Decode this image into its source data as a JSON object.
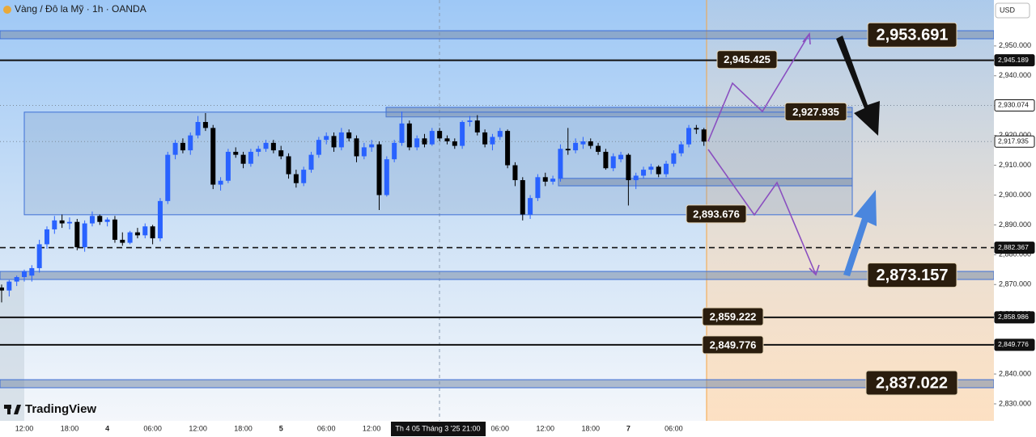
{
  "chart_data": {
    "type": "candlestick",
    "title": "Vàng / Đô la Mỹ · 1h · OANDA",
    "currency": "USD",
    "brand": "TradingView",
    "crosshair_label": "Th 4 05 Tháng 3 '25  21:00",
    "up_color": "#2962ff",
    "down_color": "#000000",
    "categories": [
      null,
      null,
      null,
      "12:00",
      null,
      null,
      null,
      null,
      null,
      "18:00",
      null,
      null,
      null,
      null,
      "4",
      null,
      null,
      null,
      null,
      null,
      "06:00",
      null,
      null,
      null,
      null,
      null,
      "12:00",
      null,
      null,
      null,
      null,
      null,
      "18:00",
      null,
      null,
      null,
      null,
      "5",
      null,
      null,
      null,
      null,
      null,
      "06:00",
      null,
      null,
      null,
      null,
      null,
      "12:00",
      null,
      null,
      null,
      null,
      null,
      null,
      null,
      null,
      null,
      null,
      null,
      null,
      null,
      null,
      null,
      null,
      "06:00",
      null,
      null,
      null,
      null,
      null,
      "12:00",
      null,
      null,
      null,
      null,
      null,
      "18:00",
      null,
      null,
      null,
      null,
      "7",
      null,
      null,
      null,
      null,
      null,
      "06:00",
      null,
      null,
      null,
      null
    ],
    "ohlc": [
      [
        2869,
        2870,
        2864,
        2868
      ],
      [
        2868,
        2871.5,
        2866,
        2871
      ],
      [
        2871,
        2873,
        2869.5,
        2872.5
      ],
      [
        2872.5,
        2875,
        2871,
        2874.5
      ],
      [
        2873,
        2876.5,
        2871,
        2875.5
      ],
      [
        2875.5,
        2885,
        2874,
        2883.5
      ],
      [
        2883.5,
        2889.5,
        2882,
        2888.5
      ],
      [
        2888.5,
        2893,
        2887,
        2891.5
      ],
      [
        2891.5,
        2893.5,
        2889,
        2890.5
      ],
      [
        2890.5,
        2892.5,
        2888.5,
        2891
      ],
      [
        2891,
        2892,
        2881.5,
        2882.5
      ],
      [
        2882.5,
        2891.5,
        2881,
        2890.5
      ],
      [
        2890.5,
        2894.5,
        2889.5,
        2893
      ],
      [
        2893,
        2893.5,
        2890,
        2891
      ],
      [
        2891,
        2892.5,
        2889.5,
        2891.8
      ],
      [
        2891.8,
        2893,
        2884,
        2885
      ],
      [
        2885,
        2887.5,
        2883,
        2884
      ],
      [
        2884,
        2888,
        2883.5,
        2887.5
      ],
      [
        2887.5,
        2889,
        2885.5,
        2886.5
      ],
      [
        2886.5,
        2890.5,
        2885.5,
        2889.5
      ],
      [
        2889.5,
        2890,
        2883.5,
        2885.5
      ],
      [
        2885.5,
        2899,
        2884.5,
        2898
      ],
      [
        2898,
        2914.5,
        2897,
        2913.5
      ],
      [
        2913.5,
        2918.5,
        2912,
        2917.5
      ],
      [
        2917.5,
        2919,
        2914,
        2915
      ],
      [
        2915,
        2921,
        2913.5,
        2920
      ],
      [
        2920,
        2926.5,
        2919,
        2924.5
      ],
      [
        2924.5,
        2927.5,
        2921.5,
        2922.5
      ],
      [
        2922.5,
        2923.5,
        2902,
        2903.5
      ],
      [
        2903.5,
        2906,
        2901.5,
        2904.8
      ],
      [
        2904.8,
        2915.5,
        2904,
        2914.5
      ],
      [
        2914.5,
        2916,
        2912.5,
        2913.5
      ],
      [
        2913.5,
        2914.5,
        2909,
        2910.5
      ],
      [
        2910.5,
        2915.5,
        2909.5,
        2914.5
      ],
      [
        2914.5,
        2916.5,
        2913,
        2915.5
      ],
      [
        2915.5,
        2918.5,
        2914.5,
        2917.5
      ],
      [
        2917.5,
        2918.5,
        2914,
        2915
      ],
      [
        2915,
        2916.5,
        2912,
        2913
      ],
      [
        2913,
        2914,
        2905.5,
        2907
      ],
      [
        2907,
        2908.5,
        2902.5,
        2904
      ],
      [
        2904,
        2909.5,
        2903,
        2908.5
      ],
      [
        2908.5,
        2914.5,
        2907.5,
        2913.5
      ],
      [
        2913.5,
        2919.5,
        2912.5,
        2918.5
      ],
      [
        2918.5,
        2921,
        2917,
        2919.8
      ],
      [
        2919.8,
        2921,
        2914.5,
        2916
      ],
      [
        2916,
        2922.5,
        2915,
        2921
      ],
      [
        2921,
        2922,
        2918,
        2919
      ],
      [
        2919,
        2920,
        2911,
        2913
      ],
      [
        2913,
        2917.5,
        2912,
        2916
      ],
      [
        2916,
        2918.5,
        2914.5,
        2917
      ],
      [
        2917,
        2918,
        2895,
        2900
      ],
      [
        2900,
        2913,
        2899.5,
        2912
      ],
      [
        2912,
        2918.5,
        2911,
        2917.5
      ],
      [
        2917.5,
        2928,
        2916.5,
        2924
      ],
      [
        2924,
        2925,
        2915,
        2916
      ],
      [
        2916,
        2920,
        2915,
        2919
      ],
      [
        2919,
        2920.5,
        2916,
        2917
      ],
      [
        2917,
        2922.5,
        2916.5,
        2921.5
      ],
      [
        2921.5,
        2922.5,
        2918,
        2919
      ],
      [
        2919,
        2920,
        2917,
        2918
      ],
      [
        2918,
        2919,
        2915.5,
        2916.5
      ],
      [
        2916.5,
        2925,
        2915.5,
        2924.5
      ],
      [
        2924.5,
        2926.5,
        2923,
        2925
      ],
      [
        2925,
        2926.8,
        2920,
        2921
      ],
      [
        2921,
        2922,
        2916,
        2917
      ],
      [
        2917,
        2920.5,
        2915,
        2919.5
      ],
      [
        2919.5,
        2922.5,
        2918.5,
        2921.5
      ],
      [
        2921.5,
        2922,
        2909,
        2910
      ],
      [
        2910,
        2911,
        2903,
        2905
      ],
      [
        2905,
        2906,
        2891.5,
        2893.5
      ],
      [
        2893.5,
        2900,
        2892,
        2899
      ],
      [
        2899,
        2907,
        2898,
        2906
      ],
      [
        2906,
        2907.5,
        2903,
        2904.5
      ],
      [
        2904.5,
        2906.5,
        2903.5,
        2905.5
      ],
      [
        2905.5,
        2917,
        2904.5,
        2915.5
      ],
      [
        2915.5,
        2922.5,
        2913.5,
        2915
      ],
      [
        2915,
        2919,
        2914,
        2917.5
      ],
      [
        2917,
        2919.5,
        2915.5,
        2918
      ],
      [
        2918,
        2919,
        2915.5,
        2916.5
      ],
      [
        2916.5,
        2917.5,
        2913.5,
        2914.5
      ],
      [
        2914.5,
        2915.5,
        2908.5,
        2909
      ],
      [
        2909,
        2914,
        2908,
        2913
      ],
      [
        2912,
        2914.5,
        2911,
        2913.5
      ],
      [
        2913.5,
        2914,
        2896.5,
        2905
      ],
      [
        2905,
        2907.5,
        2902,
        2906.5
      ],
      [
        2906.5,
        2909.5,
        2905.5,
        2908.5
      ],
      [
        2908.5,
        2910.5,
        2907,
        2909.5
      ],
      [
        2909.5,
        2910,
        2906,
        2907
      ],
      [
        2907,
        2911.5,
        2906,
        2910.5
      ],
      [
        2910.5,
        2915,
        2909.5,
        2914
      ],
      [
        2914,
        2918,
        2913,
        2917
      ],
      [
        2917,
        2923.5,
        2916,
        2922.5
      ],
      [
        2922.5,
        2923.5,
        2920.5,
        2922
      ],
      [
        2922,
        2922.5,
        2916.5,
        2917.935
      ]
    ],
    "ylim": [
      2824.3,
      2965.4
    ],
    "yticks": [
      {
        "value": 2830,
        "label": "2,830.000"
      },
      {
        "value": 2840,
        "label": "2,840.000"
      },
      {
        "value": 2850,
        "label": "2,850.000"
      },
      {
        "value": 2860,
        "label": "2,860.000"
      },
      {
        "value": 2870,
        "label": "2,870.000"
      },
      {
        "value": 2880,
        "label": "2,880.000"
      },
      {
        "value": 2890,
        "label": "2,890.000"
      },
      {
        "value": 2900,
        "label": "2,900.000"
      },
      {
        "value": 2910,
        "label": "2,910.000"
      },
      {
        "value": 2920,
        "label": "2,920.000"
      },
      {
        "value": 2930,
        "label": "2,930.000"
      },
      {
        "value": 2940,
        "label": "2,940.000"
      },
      {
        "value": 2950,
        "label": "2,950.000"
      }
    ],
    "levels": [
      {
        "value": 2945.189,
        "label": "2,945.189",
        "line": "solid"
      },
      {
        "value": 2930.074,
        "label": "2,930.074",
        "line": "dotted"
      },
      {
        "value": 2917.935,
        "label": "2,917.935",
        "line": "dotted"
      },
      {
        "value": 2882.367,
        "label": "2,882.367",
        "line": "dashed"
      },
      {
        "value": 2858.986,
        "label": "2,858.986",
        "line": "solid"
      },
      {
        "value": 2849.776,
        "label": "2,849.776",
        "line": "solid"
      }
    ],
    "zones": [
      {
        "high": 2955.1,
        "low": 2952.4
      },
      {
        "high": 2929.4,
        "low": 2926.2
      },
      {
        "high": 2927.8,
        "low": 2893.4
      },
      {
        "high": 2905.6,
        "low": 2903.1
      },
      {
        "high": 2874.4,
        "low": 2871.7
      },
      {
        "high": 2838.1,
        "low": 2835.4
      }
    ],
    "annotations": [
      {
        "value": 2953.691,
        "label": "2,953.691"
      },
      {
        "value": 2945.425,
        "label": "2,945.425"
      },
      {
        "value": 2927.935,
        "label": "2,927.935"
      },
      {
        "value": 2893.676,
        "label": "2,893.676"
      },
      {
        "value": 2873.157,
        "label": "2,873.157"
      },
      {
        "value": 2859.222,
        "label": "2,859.222"
      },
      {
        "value": 2849.776,
        "label": "2,849.776"
      },
      {
        "value": 2837.022,
        "label": "2,837.022"
      }
    ]
  }
}
